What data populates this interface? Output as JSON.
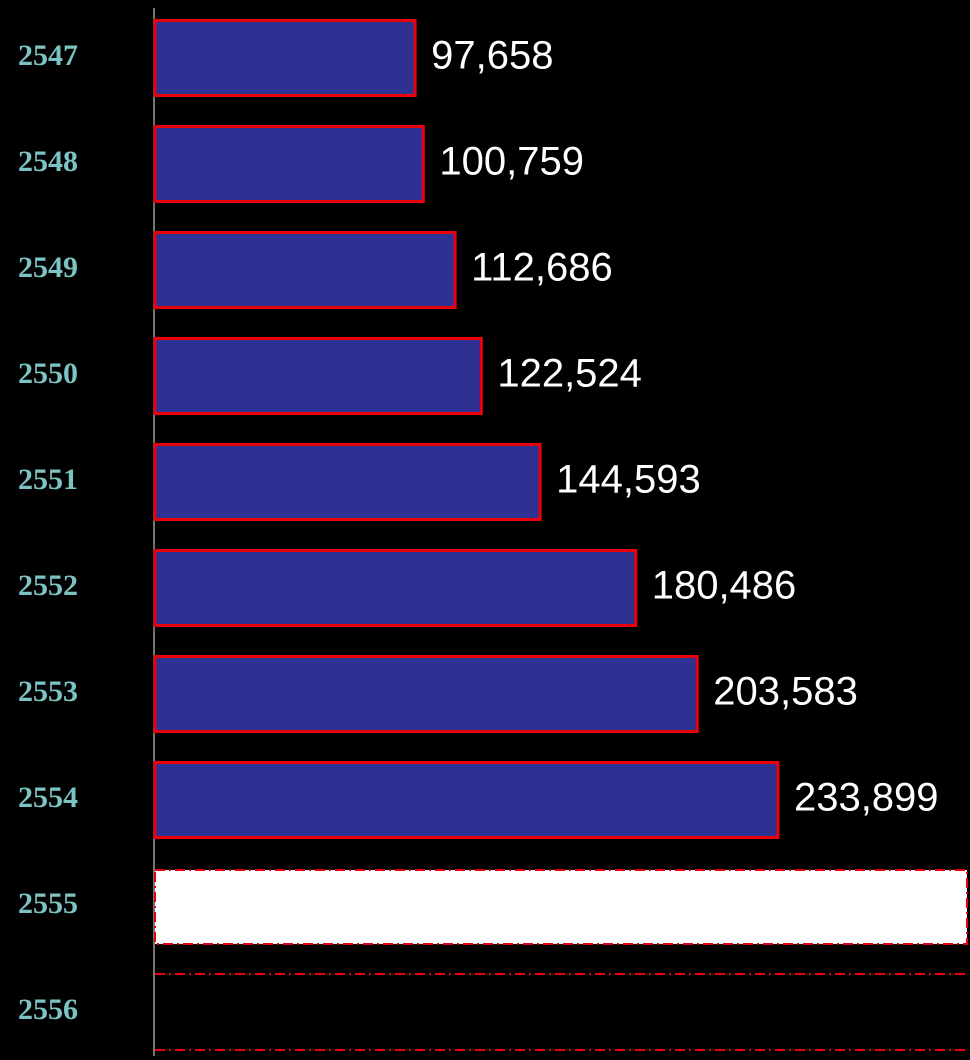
{
  "chart_data": {
    "type": "bar",
    "orientation": "horizontal",
    "categories": [
      "2547",
      "2548",
      "2549",
      "2550",
      "2551",
      "2552",
      "2553",
      "2554",
      "2555",
      "2556"
    ],
    "values": [
      97658,
      100759,
      112686,
      122524,
      144593,
      180486,
      203583,
      233899,
      null,
      null
    ],
    "value_labels": [
      "97,658",
      "100,759",
      "112,686",
      "122,524",
      "144,593",
      "180,486",
      "203,583",
      "233,899",
      null,
      null
    ],
    "color": "#2e3192",
    "edge_color": "#e8000b",
    "xlim": [
      0,
      306000
    ]
  }
}
